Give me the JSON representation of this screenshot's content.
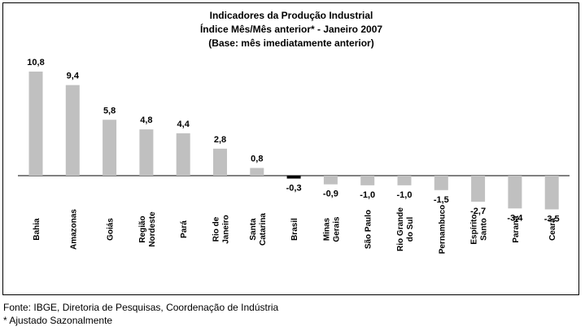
{
  "chart_data": {
    "type": "bar",
    "title": [
      "Indicadores da Produção Industrial",
      "Índice Mês/Mês anterior* - Janeiro 2007",
      "(Base: mês imediatamente anterior)"
    ],
    "categories": [
      [
        "Bahia"
      ],
      [
        "Amazonas"
      ],
      [
        "Goiás"
      ],
      [
        "Região",
        "Nordeste"
      ],
      [
        "Pará"
      ],
      [
        "Rio de",
        "Janeiro"
      ],
      [
        "Santa",
        "Catarina"
      ],
      [
        "Brasil"
      ],
      [
        "Minas",
        "Gerais"
      ],
      [
        "São Paulo"
      ],
      [
        "Rio Grande",
        "do Sul"
      ],
      [
        "Pernambuco"
      ],
      [
        "Espírito",
        "Santo"
      ],
      [
        "Paraná"
      ],
      [
        "Ceará"
      ]
    ],
    "values": [
      10.8,
      9.4,
      5.8,
      4.8,
      4.4,
      2.8,
      0.8,
      -0.3,
      -0.9,
      -1.0,
      -1.0,
      -1.5,
      -2.7,
      -3.4,
      -3.5
    ],
    "value_labels": [
      "10,8",
      "9,4",
      "5,8",
      "4,8",
      "4,4",
      "2,8",
      "0,8",
      "-0,3",
      "-0,9",
      "-1,0",
      "-1,0",
      "-1,5",
      "-2,7",
      "-3,4",
      "-3,5"
    ],
    "highlight_category": "Brasil",
    "colors": {
      "bar": "#c0c0c0",
      "highlight": "#000000",
      "axis": "#000000"
    },
    "xlabel": "",
    "ylabel": "",
    "grid": false,
    "legend": "none"
  },
  "footer": {
    "source": "Fonte: IBGE, Diretoria de Pesquisas, Coordenação de Indústria",
    "note": "*  Ajustado Sazonalmente"
  }
}
